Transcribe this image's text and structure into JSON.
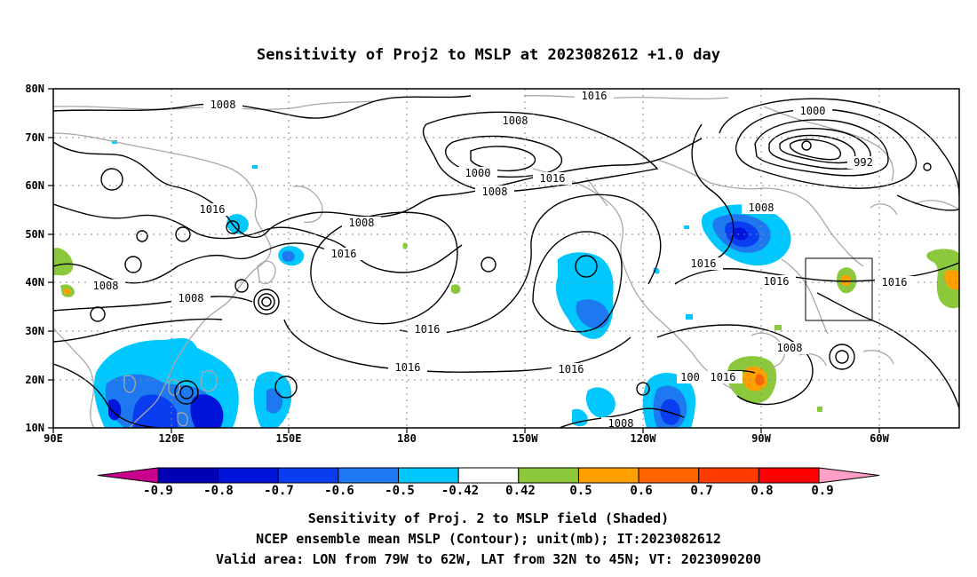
{
  "title": "Sensitivity of Proj2 to MSLP at 2023082612 +1.0 day",
  "lon_ticks": [
    "90E",
    "120E",
    "150E",
    "180",
    "150W",
    "120W",
    "90W",
    "60W"
  ],
  "lat_ticks": [
    "80N",
    "70N",
    "60N",
    "50N",
    "40N",
    "30N",
    "20N",
    "10N"
  ],
  "contour_labels": [
    "1008",
    "1016",
    "1008",
    "1000",
    "1008",
    "1016",
    "1000",
    "992",
    "1008",
    "1016",
    "1016",
    "1016",
    "1008",
    "1016",
    "1008",
    "1016",
    "1016",
    "1016",
    "1016",
    "1008",
    "1008",
    "1016",
    "1008",
    "1016",
    "100",
    "1008"
  ],
  "colorbar": {
    "ticks": [
      "-0.9",
      "-0.8",
      "-0.7",
      "-0.6",
      "-0.5",
      "-0.42",
      "0.42",
      "0.5",
      "0.6",
      "0.7",
      "0.8",
      "0.9"
    ],
    "colors": [
      "#c8008c",
      "#0000b4",
      "#0014dc",
      "#0a3cf0",
      "#1e78f0",
      "#00c8ff",
      "#ffffff",
      "#8cc83c",
      "#ffa000",
      "#ff6400",
      "#ff3c00",
      "#ff0000",
      "#ff9fc8"
    ]
  },
  "captions": [
    "Sensitivity of Proj. 2 to MSLP field (Shaded)",
    "NCEP ensemble mean MSLP (Contour); unit(mb); IT:2023082612",
    "Valid area: LON from 79W to 62W, LAT from 32N to 45N; VT: 2023090200"
  ],
  "valid_area": {
    "lon_from": "79W",
    "lon_to": "62W",
    "lat_from": "32N",
    "lat_to": "45N"
  }
}
